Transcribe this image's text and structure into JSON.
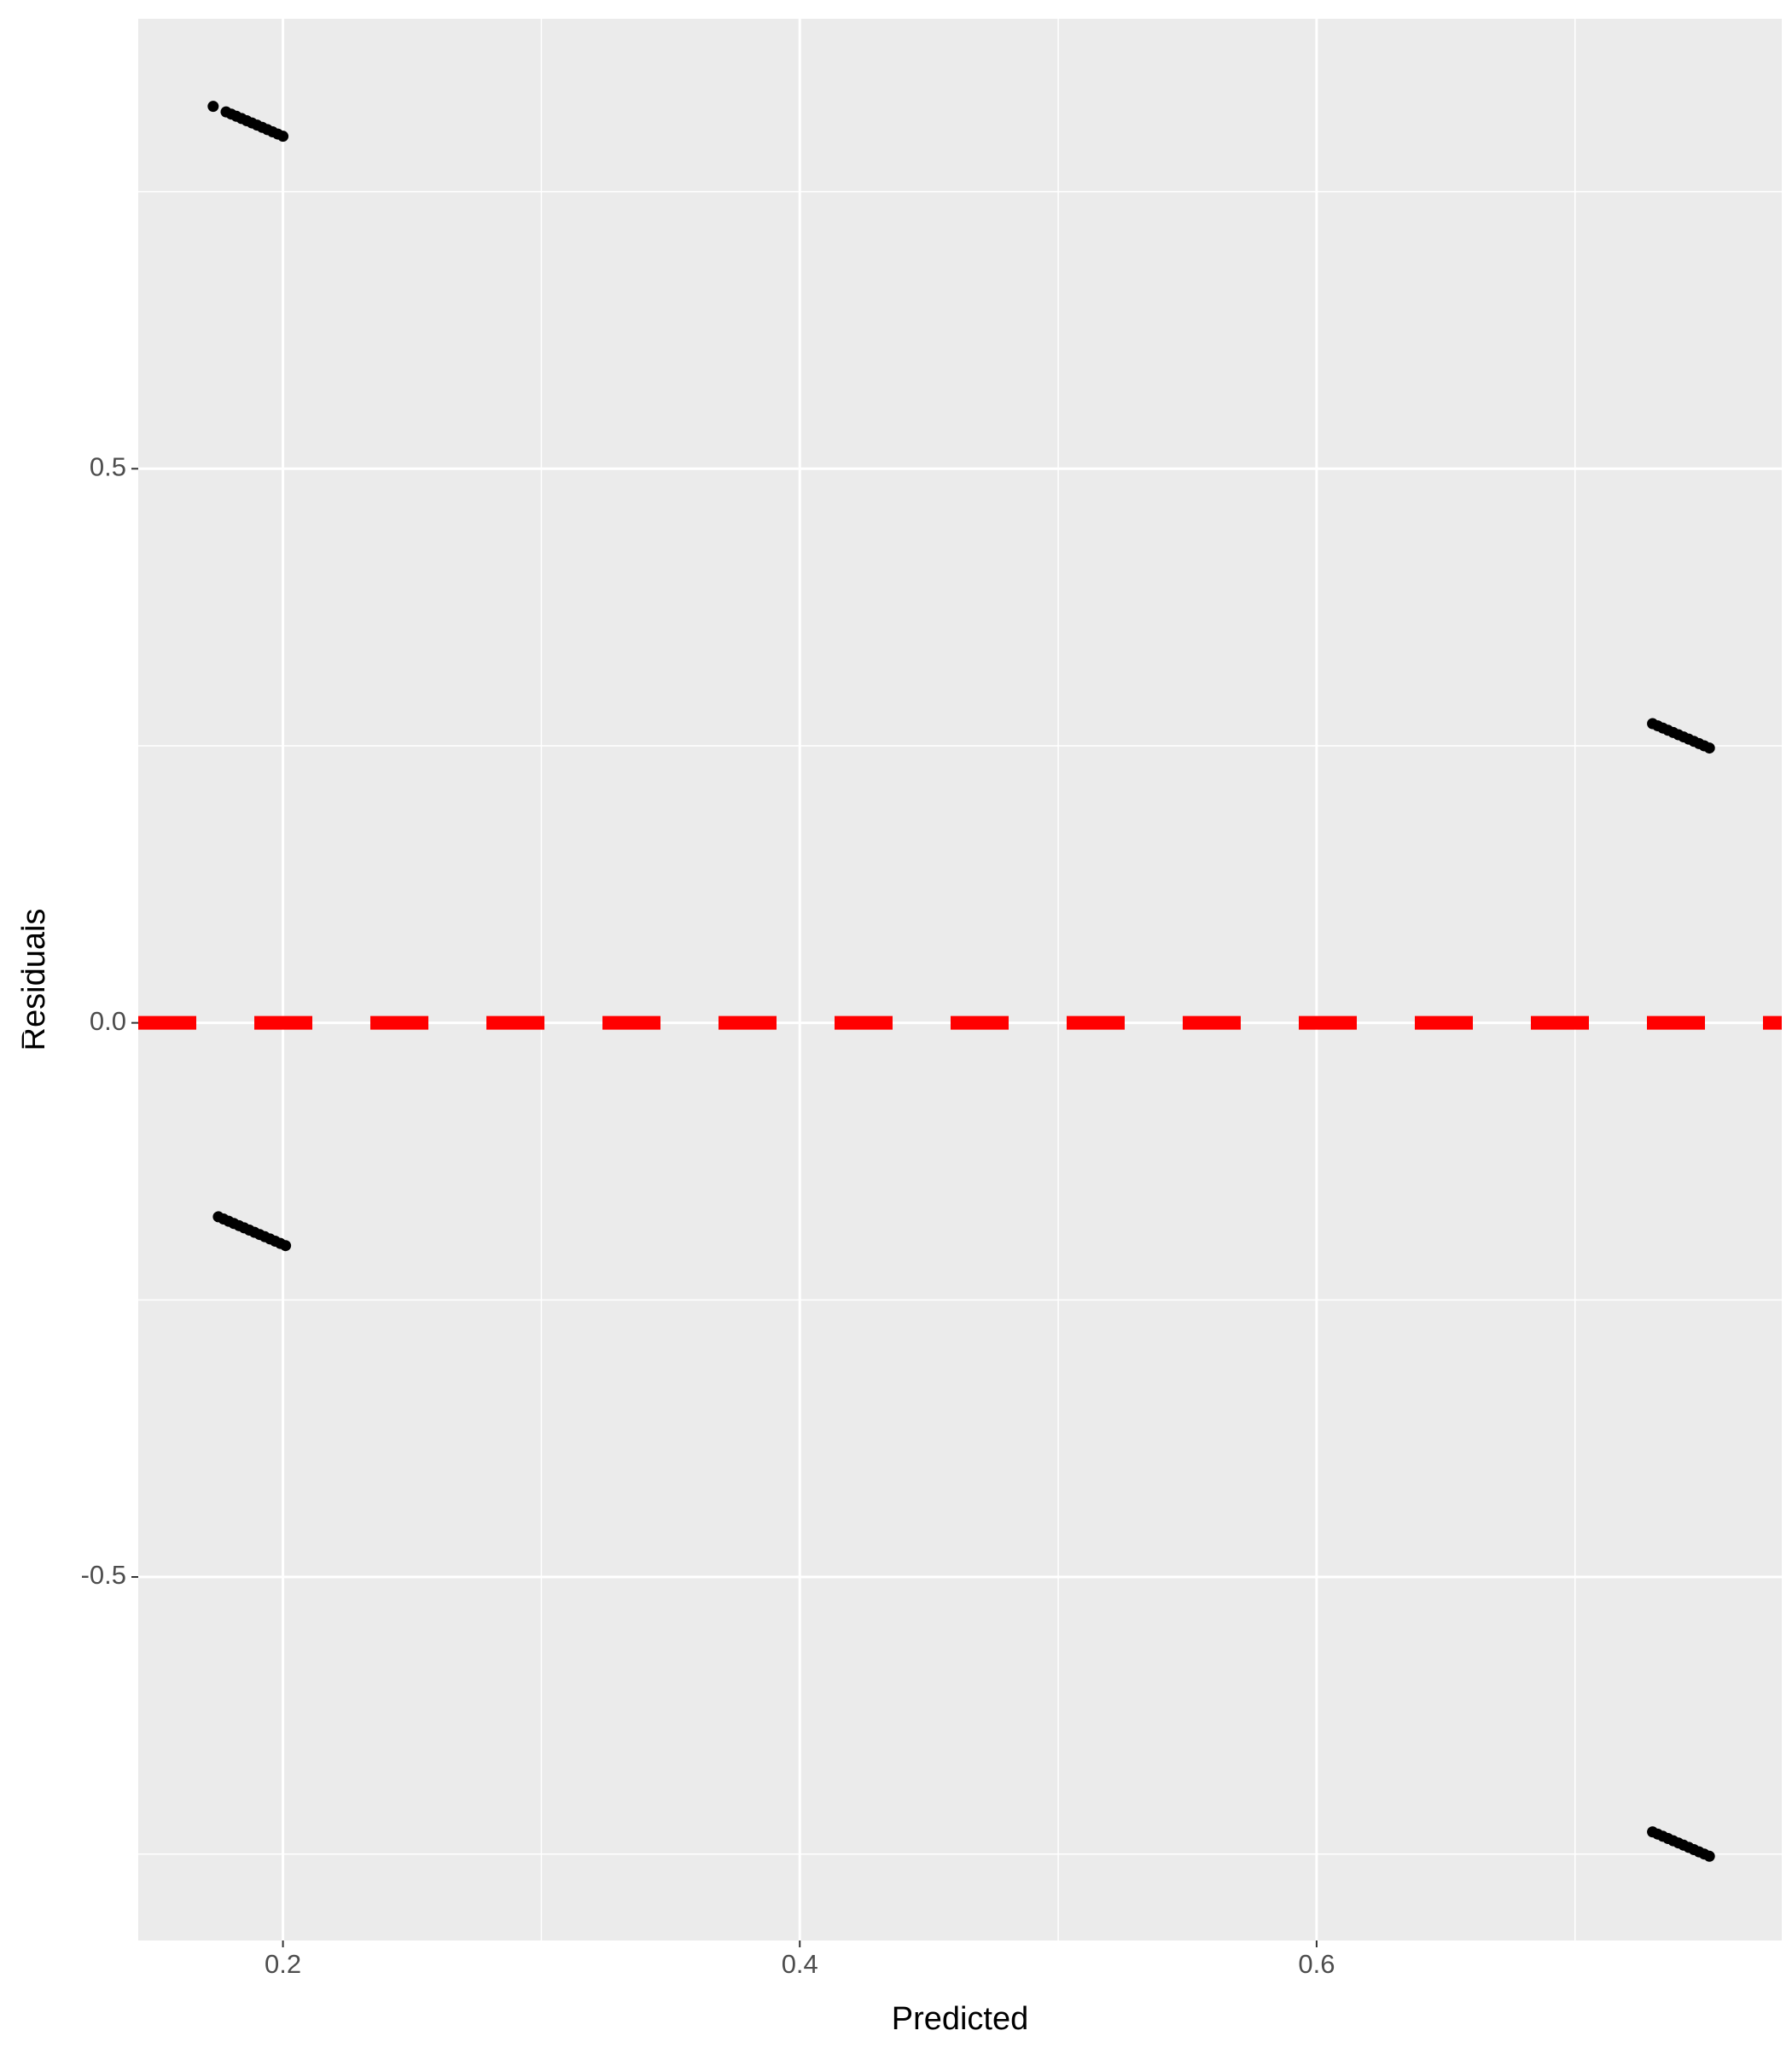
{
  "chart_data": {
    "type": "scatter",
    "x_label": "Predicted",
    "y_label": "Residuals",
    "x": [
      0.173,
      0.178,
      0.18,
      0.182,
      0.184,
      0.186,
      0.188,
      0.19,
      0.192,
      0.194,
      0.196,
      0.198,
      0.2,
      0.175,
      0.177,
      0.179,
      0.181,
      0.183,
      0.185,
      0.187,
      0.189,
      0.191,
      0.193,
      0.195,
      0.197,
      0.199,
      0.201,
      0.73,
      0.732,
      0.734,
      0.736,
      0.738,
      0.74,
      0.742,
      0.744,
      0.746,
      0.748,
      0.75,
      0.752,
      0.73,
      0.732,
      0.734,
      0.736,
      0.738,
      0.74,
      0.742,
      0.744,
      0.746,
      0.748,
      0.75,
      0.752
    ],
    "values": [
      0.827,
      0.822,
      0.82,
      0.818,
      0.816,
      0.814,
      0.812,
      0.81,
      0.808,
      0.806,
      0.804,
      0.802,
      0.8,
      -0.175,
      -0.177,
      -0.179,
      -0.181,
      -0.183,
      -0.185,
      -0.187,
      -0.189,
      -0.191,
      -0.193,
      -0.195,
      -0.197,
      -0.199,
      -0.201,
      0.27,
      0.268,
      0.266,
      0.264,
      0.262,
      0.26,
      0.258,
      0.256,
      0.254,
      0.252,
      0.25,
      0.248,
      -0.73,
      -0.732,
      -0.734,
      -0.736,
      -0.738,
      -0.74,
      -0.742,
      -0.744,
      -0.746,
      -0.748,
      -0.75,
      -0.752
    ],
    "color": "#000000",
    "xlim": [
      0.144,
      0.78
    ],
    "ylim": [
      -0.828,
      0.906
    ],
    "xticks": [
      0.2,
      0.4,
      0.6
    ],
    "yticks": [
      -0.5,
      {
        "value": 0,
        "label": "0.0"
      },
      0.5
    ],
    "minor_xticks": [
      0.1,
      0.3,
      0.5,
      0.7
    ],
    "minor_yticks": [
      -0.75,
      -0.25,
      0.25,
      0.75
    ],
    "grid": true,
    "hline": {
      "value": 0,
      "color": "#ff0000",
      "dashed": true
    }
  }
}
